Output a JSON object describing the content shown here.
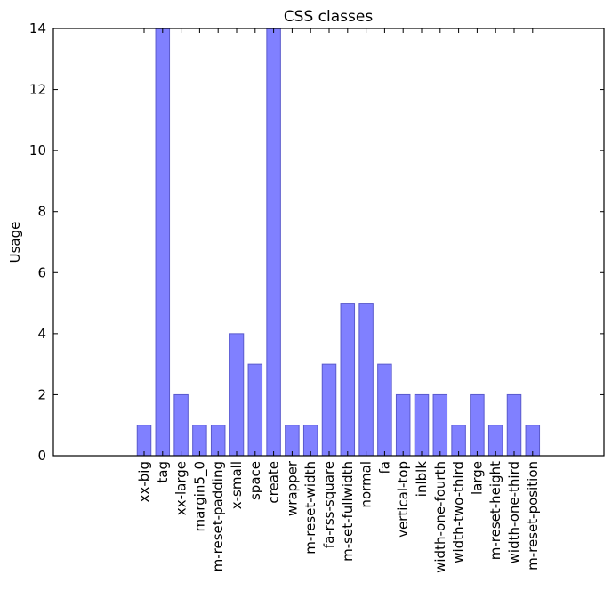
{
  "chart_data": {
    "type": "bar",
    "title": "CSS classes",
    "xlabel": "",
    "ylabel": "Usage",
    "ylim": [
      0,
      14
    ],
    "yticks": [
      0,
      2,
      4,
      6,
      8,
      10,
      12,
      14
    ],
    "grid": false,
    "categories": [
      "xx-big",
      "tag",
      "xx-large",
      "margin5_0",
      "m-reset-padding",
      "x-small",
      "space",
      "create",
      "wrapper",
      "m-reset-width",
      "fa-rss-square",
      "m-set-fullwidth",
      "normal",
      "fa",
      "vertical-top",
      "inlblk",
      "width-one-fourth",
      "width-two-third",
      "large",
      "m-reset-height",
      "width-one-third",
      "m-reset-position"
    ],
    "values": [
      1,
      14,
      2,
      1,
      1,
      4,
      3,
      14,
      1,
      1,
      3,
      5,
      5,
      3,
      2,
      2,
      2,
      1,
      2,
      1,
      2,
      1
    ],
    "colors": {
      "bar_fill": "#8080ff",
      "bar_edge": "#5a5acc"
    }
  }
}
